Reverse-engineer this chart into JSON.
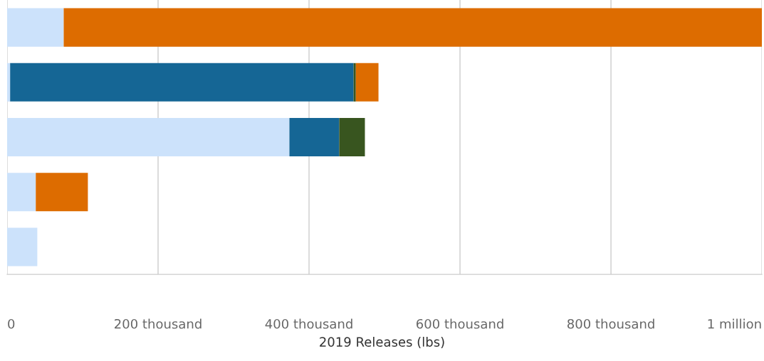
{
  "chart_data": {
    "type": "bar",
    "orientation": "horizontal",
    "stacked": true,
    "xlabel": "2019 Releases (lbs)",
    "categories": [
      null,
      null,
      null,
      null,
      null
    ],
    "series": [
      {
        "color": "#cce2fb",
        "values": [
          75000,
          4000,
          374000,
          38000,
          40000
        ]
      },
      {
        "color": "#156695",
        "values": [
          0,
          455000,
          66000,
          0,
          0
        ]
      },
      {
        "color": "#38551f",
        "values": [
          0,
          3000,
          34000,
          0,
          0
        ]
      },
      {
        "color": "#dd6c00",
        "values": [
          925000,
          30000,
          0,
          69000,
          0
        ]
      }
    ],
    "xlim": [
      0,
      1000000
    ],
    "xticks": [
      {
        "value": 0,
        "label": "0"
      },
      {
        "value": 200000,
        "label": "200 thousand"
      },
      {
        "value": 400000,
        "label": "400 thousand"
      },
      {
        "value": 600000,
        "label": "600 thousand"
      },
      {
        "value": 800000,
        "label": "800 thousand"
      },
      {
        "value": 1000000,
        "label": "1 million"
      }
    ],
    "tick_labels": "x",
    "grid": "x",
    "legend": false
  }
}
